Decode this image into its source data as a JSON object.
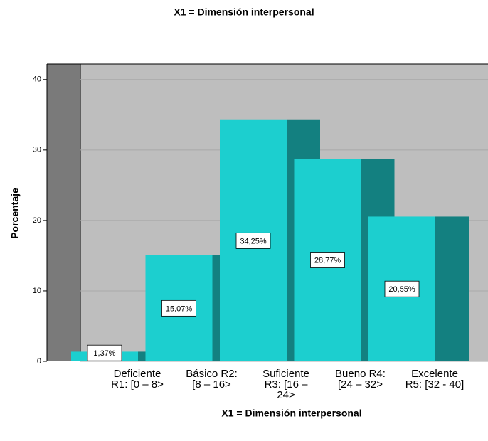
{
  "chart_data": {
    "type": "bar3d",
    "title": "X1 = Dimensión interpersonal",
    "xlabel": "X1 = Dimensión interpersonal",
    "ylabel": "Porcentaje",
    "categories": [
      [
        "Deficiente",
        "R1: [0 – 8>"
      ],
      [
        "Básico R2:",
        "[8 – 16>"
      ],
      [
        "Suficiente",
        "R3: [16 –",
        "24>"
      ],
      [
        "Bueno  R4:",
        "[24 – 32>"
      ],
      [
        "Excelente",
        "R5: [32 - 40]"
      ]
    ],
    "values": [
      1.37,
      15.07,
      34.25,
      28.77,
      20.55
    ],
    "value_labels": [
      "1,37%",
      "15,07%",
      "34,25%",
      "28,77%",
      "20,55%"
    ],
    "color": "#1ccfcf",
    "side_color": "#138080",
    "ylim": [
      0,
      42.2
    ],
    "yticks": [
      0,
      10,
      20,
      30,
      40
    ],
    "grid": true
  }
}
